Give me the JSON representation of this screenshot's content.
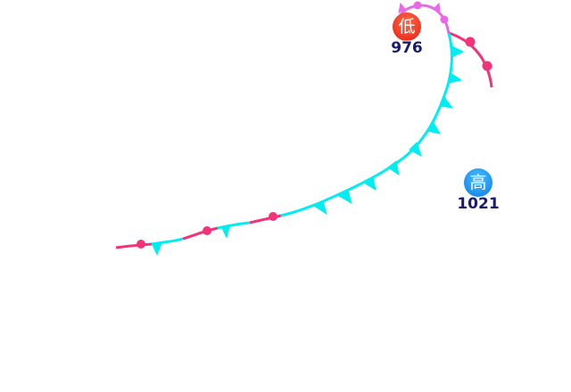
{
  "colors": {
    "occluded": "#e868e8",
    "warm": "#f2337a",
    "cold": "#00eef2",
    "low": "#f5301e",
    "high": "#1b8ef0",
    "value_text": "#1a1a6e"
  },
  "pressure_centers": [
    {
      "type": "low",
      "label": "低",
      "value": "976"
    },
    {
      "type": "high",
      "label": "高",
      "value": "1021"
    }
  ],
  "fronts": [
    "occluded",
    "warm",
    "cold",
    "stationary"
  ]
}
